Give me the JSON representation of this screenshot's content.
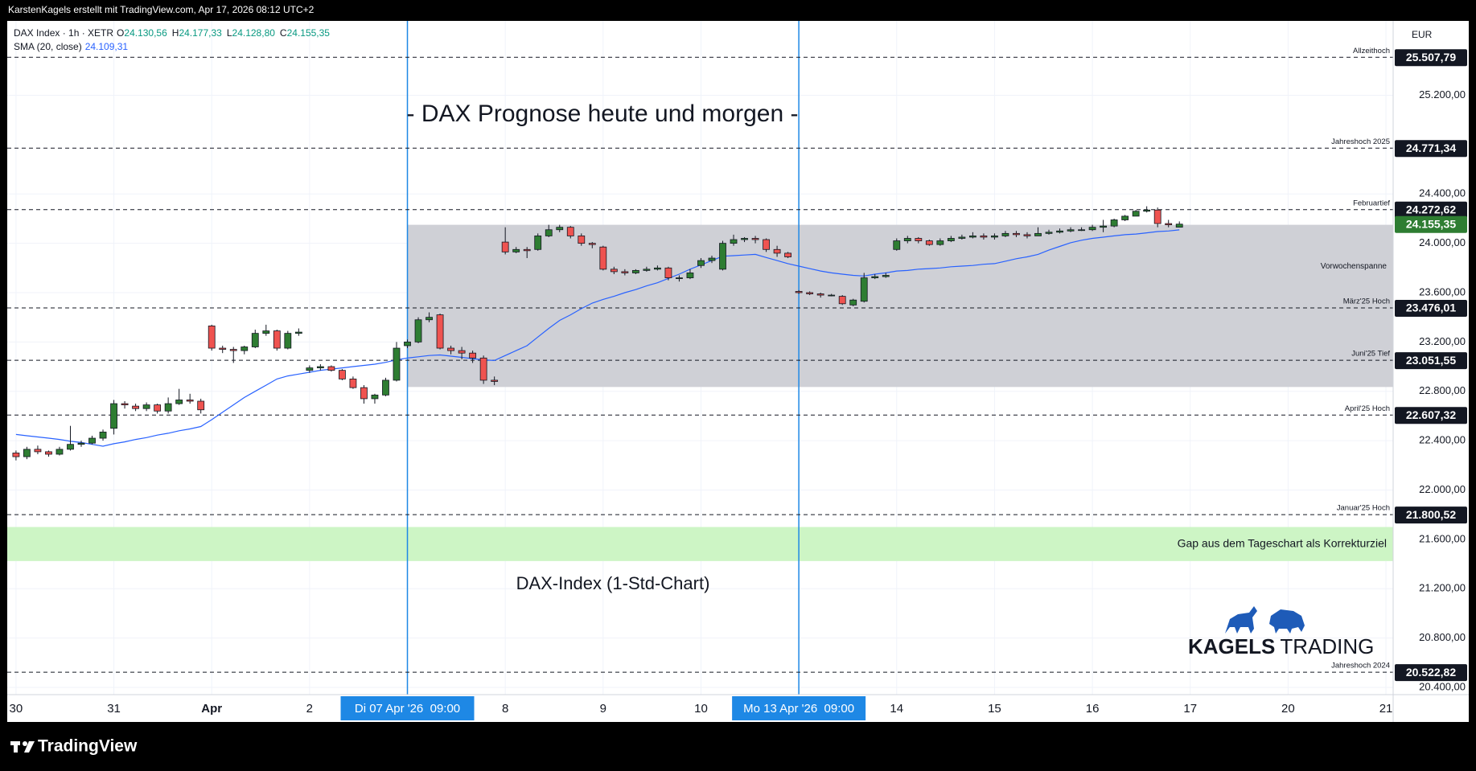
{
  "header": {
    "attribution": "KarstenKagels erstellt mit TradingView.com, Apr 17, 2026 08:12 UTC+2",
    "brand": "TradingView"
  },
  "chart_data": {
    "type": "candlestick",
    "symbol": "DAX Index · 1h · XETR",
    "ohlc_legend": [
      {
        "key": "O",
        "value": "24.130,56"
      },
      {
        "key": "H",
        "value": "24.177,33"
      },
      {
        "key": "L",
        "value": "24.128,80"
      },
      {
        "key": "C",
        "value": "24.155,35"
      }
    ],
    "currency": "EUR",
    "title": "- DAX Prognose heute und morgen -",
    "subtitle": "DAX-Index (1-Std-Chart)",
    "logo": {
      "bold": "KAGELS",
      "light": "TRADING"
    },
    "categories": [
      "30",
      null,
      null,
      null,
      null,
      null,
      null,
      null,
      null,
      "31",
      null,
      null,
      null,
      null,
      null,
      null,
      null,
      null,
      "Apr",
      null,
      null,
      null,
      null,
      null,
      null,
      null,
      null,
      "2",
      null,
      null,
      null,
      null,
      null,
      null,
      null,
      null,
      "Di 07 Apr '26  09:00",
      null,
      null,
      null,
      null,
      null,
      null,
      null,
      null,
      "8",
      null,
      null,
      null,
      null,
      null,
      null,
      null,
      null,
      "9",
      null,
      null,
      null,
      null,
      null,
      null,
      null,
      null,
      "10",
      null,
      null,
      null,
      null,
      null,
      null,
      null,
      null,
      "Mo 13 Apr '26  09:00",
      null,
      null,
      null,
      null,
      null,
      null,
      null,
      null,
      "14",
      null,
      null,
      null,
      null,
      null,
      null,
      null,
      null,
      "15",
      null,
      null,
      null,
      null,
      null,
      null,
      null,
      null,
      "16",
      null,
      null,
      null,
      null,
      null,
      null,
      null,
      null,
      "17",
      null,
      null,
      null,
      null,
      null,
      null,
      null,
      null,
      "20",
      null,
      null,
      null,
      null,
      null,
      null,
      null,
      null,
      "21"
    ],
    "series": [
      {
        "name": "DAX Index",
        "up_color": "#2e7d32",
        "down_color": "#ef5350",
        "open": [
          22300,
          22270,
          22330,
          22310,
          22290,
          22330,
          22370,
          22380,
          22420,
          22500,
          22700,
          22680,
          22660,
          22690,
          22640,
          22700,
          22730,
          22720,
          23330,
          23150,
          23140,
          23130,
          23160,
          23270,
          23290,
          23150,
          23270,
          22970,
          22990,
          23000,
          22970,
          22900,
          22830,
          22740,
          22770,
          22890,
          23170,
          23200,
          23380,
          23420,
          23150,
          23130,
          23110,
          23070,
          22890,
          24010,
          23930,
          23950,
          23950,
          24060,
          24110,
          24130,
          24060,
          24000,
          23970,
          23790,
          23770,
          23760,
          23780,
          23790,
          23800,
          23720,
          23720,
          23820,
          23860,
          23790,
          24000,
          24030,
          24040,
          24030,
          23950,
          23920,
          23610,
          23600,
          23590,
          23580,
          23570,
          23500,
          23530,
          23720,
          23730,
          23950,
          24020,
          24040,
          24020,
          23990,
          24020,
          24040,
          24050,
          24060,
          24050,
          24060,
          24080,
          24070,
          24060,
          24080,
          24090,
          24100,
          24110,
          24110,
          24130,
          24140,
          24190,
          24220,
          24260,
          24270,
          24160,
          24130.56,
          null,
          null,
          null,
          null,
          null,
          null,
          null,
          null,
          null,
          null,
          null,
          null,
          null,
          null,
          null,
          null,
          null,
          null,
          null
        ],
        "high": [
          22320,
          22350,
          22360,
          22320,
          22350,
          22520,
          22400,
          22440,
          22490,
          22730,
          22720,
          22700,
          22710,
          22700,
          22750,
          22820,
          22780,
          22740,
          23340,
          23170,
          23160,
          23170,
          23300,
          23340,
          23300,
          23290,
          23310,
          23010,
          23020,
          23010,
          22980,
          22920,
          22850,
          22780,
          22910,
          23200,
          23220,
          23400,
          23440,
          23430,
          23170,
          23160,
          23130,
          23090,
          22920,
          24130,
          23970,
          23970,
          24080,
          24150,
          24150,
          24140,
          24080,
          24010,
          23980,
          23810,
          23790,
          23790,
          23810,
          23820,
          23810,
          23740,
          23790,
          23880,
          23900,
          24020,
          24070,
          24050,
          24060,
          24040,
          23980,
          23930,
          23620,
          23610,
          23600,
          23590,
          23580,
          23550,
          23760,
          23750,
          23760,
          24040,
          24060,
          24050,
          24030,
          24040,
          24060,
          24070,
          24090,
          24080,
          24080,
          24100,
          24100,
          24090,
          24130,
          24110,
          24120,
          24130,
          24130,
          24150,
          24190,
          24200,
          24230,
          24270,
          24300,
          24290,
          24190,
          24177.33,
          null,
          null,
          null,
          null,
          null,
          null,
          null,
          null,
          null,
          null,
          null,
          null,
          null,
          null,
          null,
          null,
          null,
          null,
          null
        ],
        "low": [
          22240,
          22250,
          22290,
          22270,
          22280,
          22320,
          22350,
          22370,
          22400,
          22450,
          22660,
          22640,
          22640,
          22620,
          22620,
          22690,
          22700,
          22620,
          23130,
          23110,
          23030,
          23100,
          23150,
          23250,
          23130,
          23140,
          23250,
          22950,
          22970,
          22960,
          22890,
          22820,
          22700,
          22700,
          22760,
          22880,
          23150,
          23190,
          23360,
          23140,
          23100,
          23060,
          23030,
          22860,
          22850,
          23910,
          23920,
          23880,
          23940,
          24050,
          24090,
          24040,
          23980,
          23960,
          23780,
          23750,
          23740,
          23750,
          23770,
          23780,
          23700,
          23690,
          23710,
          23800,
          23840,
          23780,
          23980,
          24010,
          24000,
          23930,
          23890,
          23880,
          23590,
          23580,
          23560,
          23570,
          23500,
          23490,
          23520,
          23710,
          23720,
          23940,
          24000,
          24000,
          23980,
          23980,
          24010,
          24030,
          24040,
          24030,
          24030,
          24050,
          24050,
          24040,
          24060,
          24070,
          24080,
          24090,
          24100,
          24100,
          24090,
          24130,
          24180,
          24220,
          24250,
          24130,
          24130,
          24128.8,
          null,
          null,
          null,
          null,
          null,
          null,
          null,
          null,
          null,
          null,
          null,
          null,
          null,
          null,
          null,
          null,
          null,
          null,
          null
        ],
        "close": [
          22270,
          22330,
          22310,
          22290,
          22330,
          22370,
          22380,
          22420,
          22470,
          22700,
          22690,
          22660,
          22690,
          22640,
          22700,
          22730,
          22720,
          22650,
          23150,
          23140,
          23130,
          23160,
          23270,
          23290,
          23150,
          23270,
          23280,
          22990,
          23000,
          22970,
          22900,
          22830,
          22740,
          22770,
          22890,
          23150,
          23200,
          23380,
          23400,
          23150,
          23130,
          23110,
          23070,
          22890,
          22880,
          23930,
          23950,
          23940,
          24060,
          24110,
          24130,
          24060,
          24000,
          23990,
          23790,
          23770,
          23760,
          23780,
          23790,
          23800,
          23720,
          23720,
          23760,
          23860,
          23880,
          24000,
          24030,
          24040,
          24030,
          23950,
          23920,
          23890,
          23600,
          23590,
          23580,
          23580,
          23510,
          23540,
          23720,
          23730,
          23740,
          24020,
          24040,
          24020,
          23990,
          24020,
          24040,
          24050,
          24060,
          24050,
          24060,
          24080,
          24070,
          24060,
          24080,
          24090,
          24100,
          24110,
          24110,
          24130,
          24140,
          24190,
          24220,
          24260,
          24270,
          24160,
          24150,
          24155.35,
          null,
          null,
          null,
          null,
          null,
          null,
          null,
          null,
          null,
          null,
          null,
          null,
          null,
          null,
          null,
          null,
          null,
          null,
          null
        ]
      },
      {
        "name": "SMA (20, close)",
        "color": "#2962ff",
        "value_label": "24.109,31",
        "values": [
          22450,
          22440,
          22430,
          22420,
          22410,
          22395,
          22385,
          22370,
          22355,
          22375,
          22390,
          22410,
          22425,
          22445,
          22460,
          22480,
          22495,
          22515,
          22570,
          22630,
          22690,
          22750,
          22800,
          22850,
          22900,
          22925,
          22940,
          22955,
          22970,
          22980,
          22990,
          23000,
          23010,
          23020,
          23035,
          23055,
          23070,
          23080,
          23090,
          23095,
          23085,
          23075,
          23065,
          23055,
          23050,
          23090,
          23130,
          23170,
          23240,
          23310,
          23375,
          23420,
          23470,
          23515,
          23545,
          23570,
          23600,
          23625,
          23655,
          23680,
          23715,
          23750,
          23790,
          23825,
          23860,
          23895,
          23900,
          23905,
          23910,
          23885,
          23860,
          23835,
          23815,
          23795,
          23775,
          23760,
          23750,
          23740,
          23735,
          23750,
          23760,
          23775,
          23780,
          23790,
          23795,
          23800,
          23810,
          23815,
          23820,
          23830,
          23835,
          23855,
          23875,
          23890,
          23910,
          23945,
          23975,
          24005,
          24025,
          24040,
          24050,
          24060,
          24070,
          24075,
          24085,
          24095,
          24100,
          24109.31,
          null,
          null,
          null,
          null,
          null,
          null,
          null,
          null,
          null,
          null,
          null,
          null,
          null,
          null,
          null,
          null,
          null,
          null,
          null
        ]
      }
    ],
    "last_price": {
      "value": 24155.35,
      "label": "24.155,35",
      "color": "#2e7d32"
    },
    "levels": [
      {
        "value": 25507.79,
        "label": "25.507,79",
        "name": "Allzeithoch"
      },
      {
        "value": 24771.34,
        "label": "24.771,34",
        "name": "Jahreshoch 2025"
      },
      {
        "value": 24272.62,
        "label": "24.272,62",
        "name": "Februartief"
      },
      {
        "value": 23476.01,
        "label": "23.476,01",
        "name": "März'25 Hoch"
      },
      {
        "value": 23051.55,
        "label": "23.051,55",
        "name": "Juni'25 Tief"
      },
      {
        "value": 22607.32,
        "label": "22.607,32",
        "name": "April'25 Hoch"
      },
      {
        "value": 21800.52,
        "label": "21.800,52",
        "name": "Januar'25 Hoch"
      },
      {
        "value": 20522.82,
        "label": "20.522,82",
        "name": "Jahreshoch 2024"
      }
    ],
    "zones": [
      {
        "name": "Vorwochenspanne",
        "low": 22835,
        "high": 24150,
        "color": "#cfd0d6"
      },
      {
        "name": "Gap aus dem Tageschart als Korrekturziel",
        "low": 21424,
        "high": 21700,
        "color": "#cdf5c5"
      }
    ],
    "ylim": [
      20341,
      25803
    ],
    "yticks": [
      {
        "value": 20400,
        "label": "20.400,00"
      },
      {
        "value": 20800,
        "label": "20.800,00"
      },
      {
        "value": 21200,
        "label": "21.200,00"
      },
      {
        "value": 21600,
        "label": "21.600,00"
      },
      {
        "value": 22000,
        "label": "22.000,00"
      },
      {
        "value": 22400,
        "label": "22.400,00"
      },
      {
        "value": 22800,
        "label": "22.800,00"
      },
      {
        "value": 23200,
        "label": "23.200,00"
      },
      {
        "value": 23600,
        "label": "23.600,00"
      },
      {
        "value": 24000,
        "label": "24.000,00"
      },
      {
        "value": 24400,
        "label": "24.400,00"
      },
      {
        "value": 25200,
        "label": "25.200,00"
      }
    ],
    "grid": true,
    "vertical_line_color": "#1e88e5"
  }
}
